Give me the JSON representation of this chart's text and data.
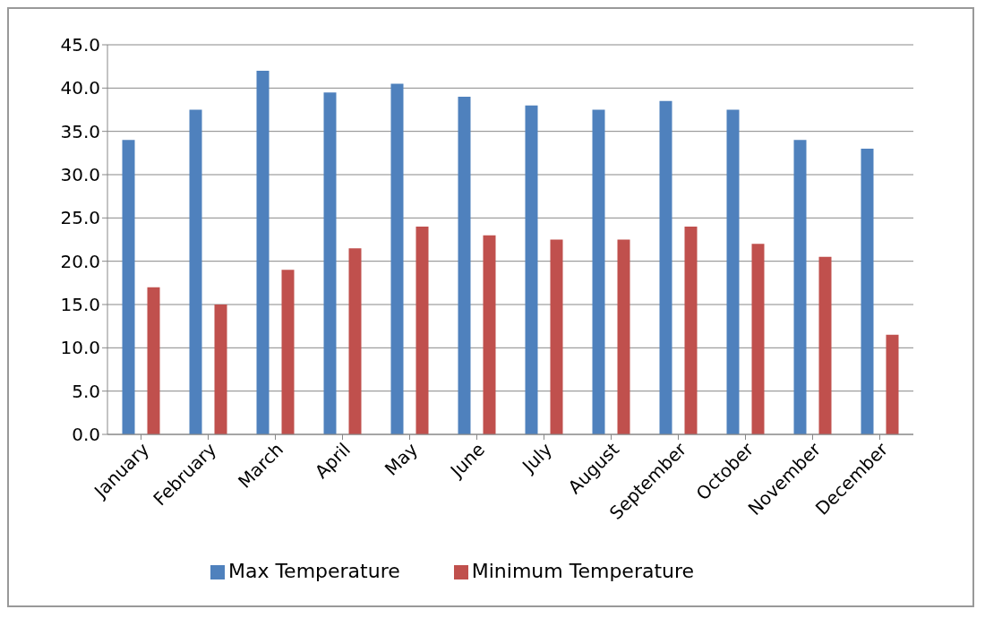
{
  "chart_data": {
    "type": "bar",
    "categories": [
      "January",
      "February",
      "March",
      "April",
      "May",
      "June",
      "July",
      "August",
      "September",
      "October",
      "November",
      "December"
    ],
    "series": [
      {
        "name": "Max Temperature",
        "color": "#4f81bd",
        "values": [
          34,
          37.5,
          42,
          39.5,
          40.5,
          39,
          38,
          37.5,
          38.5,
          37.5,
          34,
          33
        ]
      },
      {
        "name": "Minimum Temperature",
        "color": "#c0504d",
        "values": [
          17,
          15,
          19,
          21.5,
          24,
          23,
          22.5,
          22.5,
          24,
          22,
          20.5,
          11.5
        ]
      }
    ],
    "ylim": [
      0,
      45
    ],
    "yticks": [
      {
        "value": 0,
        "label": "0.0"
      },
      {
        "value": 5,
        "label": "5.0"
      },
      {
        "value": 10,
        "label": "10.0"
      },
      {
        "value": 15,
        "label": "15.0"
      },
      {
        "value": 20,
        "label": "20.0"
      },
      {
        "value": 25,
        "label": "25.0"
      },
      {
        "value": 30,
        "label": "30.0"
      },
      {
        "value": 35,
        "label": "35.0"
      },
      {
        "value": 40,
        "label": "40.0"
      },
      {
        "value": 45,
        "label": "45.0"
      }
    ],
    "grid": "y",
    "legend": "bottom"
  }
}
